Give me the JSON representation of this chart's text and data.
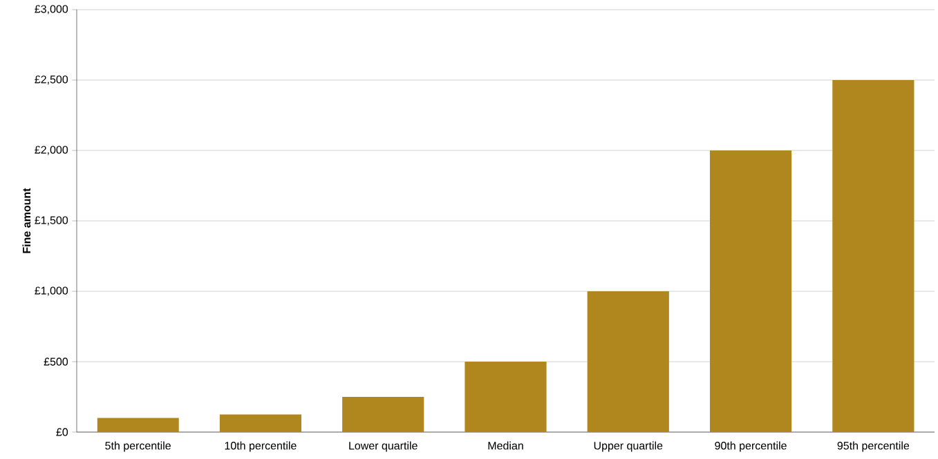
{
  "chart_data": {
    "type": "bar",
    "ylabel": "Fine amount",
    "categories": [
      "5th percentile",
      "10th percentile",
      "Lower quartile",
      "Median",
      "Upper quartile",
      "90th percentile",
      "95th percentile"
    ],
    "values": [
      100,
      125,
      250,
      500,
      1000,
      2000,
      2500
    ],
    "color": "#b0861f",
    "ylim": [
      0,
      3000
    ],
    "yticks": [
      {
        "value": 0,
        "label": "£0"
      },
      {
        "value": 500,
        "label": "£500"
      },
      {
        "value": 1000,
        "label": "£1,000"
      },
      {
        "value": 1500,
        "label": "£1,500"
      },
      {
        "value": 2000,
        "label": "£2,000"
      },
      {
        "value": 2500,
        "label": "£2,500"
      },
      {
        "value": 3000,
        "label": "£3,000"
      }
    ],
    "grid": "y"
  }
}
